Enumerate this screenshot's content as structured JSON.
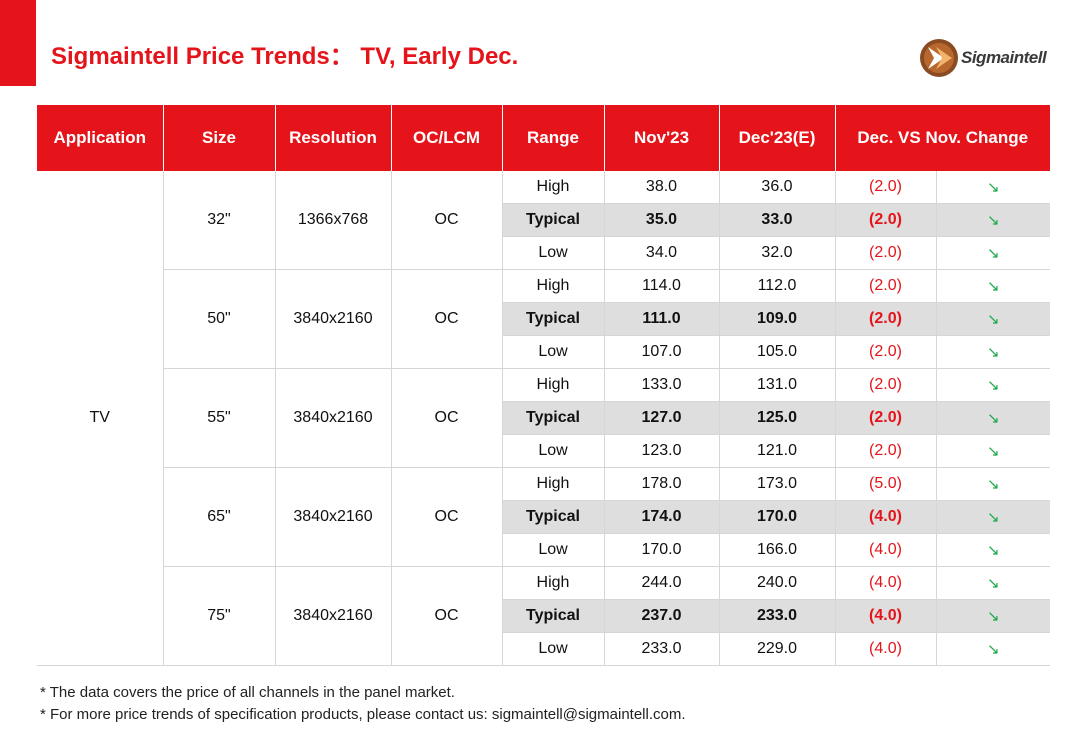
{
  "title": "Sigmaintell Price Trends： TV, Early Dec.",
  "logo": {
    "text": "Sigmaintell",
    "icon": "sigmaintell-logo-icon",
    "colors": {
      "circle": "#8a4a22",
      "chevron": "#e07a2a"
    }
  },
  "colors": {
    "accent": "#e5141b",
    "typical_row_bg": "#dedede",
    "negative_text": "#e5141b",
    "down_arrow": "#1aa84a"
  },
  "table": {
    "headers": [
      "Application",
      "Size",
      "Resolution",
      "OC/LCM",
      "Range",
      "Nov'23",
      "Dec'23(E)",
      "Dec. VS Nov. Change"
    ],
    "application": "TV",
    "groups": [
      {
        "size": "32\"",
        "resolution": "1366x768",
        "type": "OC",
        "rows": [
          {
            "range": "High",
            "nov": "38.0",
            "dec": "36.0",
            "change": "(2.0)",
            "arrow": "↘"
          },
          {
            "range": "Typical",
            "nov": "35.0",
            "dec": "33.0",
            "change": "(2.0)",
            "arrow": "↘"
          },
          {
            "range": "Low",
            "nov": "34.0",
            "dec": "32.0",
            "change": "(2.0)",
            "arrow": "↘"
          }
        ]
      },
      {
        "size": "50\"",
        "resolution": "3840x2160",
        "type": "OC",
        "rows": [
          {
            "range": "High",
            "nov": "114.0",
            "dec": "112.0",
            "change": "(2.0)",
            "arrow": "↘"
          },
          {
            "range": "Typical",
            "nov": "111.0",
            "dec": "109.0",
            "change": "(2.0)",
            "arrow": "↘"
          },
          {
            "range": "Low",
            "nov": "107.0",
            "dec": "105.0",
            "change": "(2.0)",
            "arrow": "↘"
          }
        ]
      },
      {
        "size": "55\"",
        "resolution": "3840x2160",
        "type": "OC",
        "rows": [
          {
            "range": "High",
            "nov": "133.0",
            "dec": "131.0",
            "change": "(2.0)",
            "arrow": "↘"
          },
          {
            "range": "Typical",
            "nov": "127.0",
            "dec": "125.0",
            "change": "(2.0)",
            "arrow": "↘"
          },
          {
            "range": "Low",
            "nov": "123.0",
            "dec": "121.0",
            "change": "(2.0)",
            "arrow": "↘"
          }
        ]
      },
      {
        "size": "65\"",
        "resolution": "3840x2160",
        "type": "OC",
        "rows": [
          {
            "range": "High",
            "nov": "178.0",
            "dec": "173.0",
            "change": "(5.0)",
            "arrow": "↘"
          },
          {
            "range": "Typical",
            "nov": "174.0",
            "dec": "170.0",
            "change": "(4.0)",
            "arrow": "↘"
          },
          {
            "range": "Low",
            "nov": "170.0",
            "dec": "166.0",
            "change": "(4.0)",
            "arrow": "↘"
          }
        ]
      },
      {
        "size": "75\"",
        "resolution": "3840x2160",
        "type": "OC",
        "rows": [
          {
            "range": "High",
            "nov": "244.0",
            "dec": "240.0",
            "change": "(4.0)",
            "arrow": "↘"
          },
          {
            "range": "Typical",
            "nov": "237.0",
            "dec": "233.0",
            "change": "(4.0)",
            "arrow": "↘"
          },
          {
            "range": "Low",
            "nov": "233.0",
            "dec": "229.0",
            "change": "(4.0)",
            "arrow": "↘"
          }
        ]
      }
    ]
  },
  "footnotes": [
    "* The data covers the price of all channels in the panel market.",
    "* For more price trends of specification products, please contact us: sigmaintell@sigmaintell.com."
  ]
}
